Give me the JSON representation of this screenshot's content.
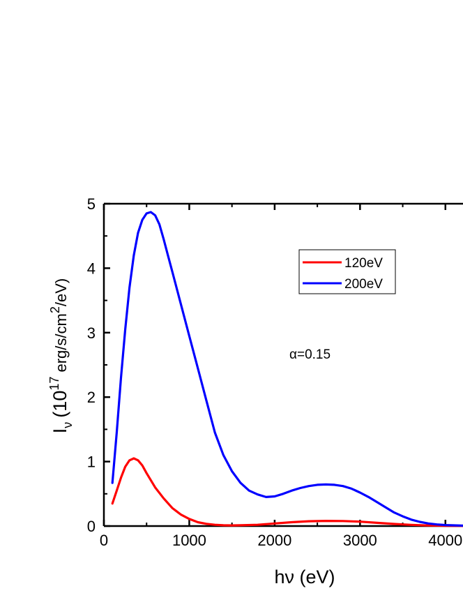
{
  "chart_data": {
    "type": "line",
    "xlabel": "hν (eV)",
    "ylabel": {
      "main": "I",
      "sub": "ν",
      "open": "(10",
      "exp": "17",
      "unit": " erg/s/cm",
      "exp2": "2",
      "close": "/eV)"
    },
    "xlim": [
      0,
      4500
    ],
    "ylim": [
      0,
      5
    ],
    "x_ticks": [
      0,
      1000,
      2000,
      3000,
      4000
    ],
    "y_ticks": [
      0,
      1,
      2,
      3,
      4,
      5
    ],
    "grid": false,
    "legend_position": "top-right",
    "annotation": "α=0.15",
    "series": [
      {
        "name": "120eV",
        "color": "#ff0000",
        "x": [
          100,
          150,
          200,
          250,
          300,
          350,
          400,
          450,
          500,
          600,
          700,
          800,
          900,
          1000,
          1100,
          1200,
          1300,
          1400,
          1500,
          1600,
          1800,
          2000,
          2200,
          2400,
          2600,
          2800,
          3000,
          3200,
          3400,
          3600,
          3800,
          4000,
          4200,
          4500
        ],
        "y": [
          0.35,
          0.55,
          0.75,
          0.92,
          1.02,
          1.05,
          1.02,
          0.94,
          0.82,
          0.6,
          0.43,
          0.28,
          0.18,
          0.11,
          0.06,
          0.035,
          0.02,
          0.012,
          0.01,
          0.012,
          0.02,
          0.04,
          0.06,
          0.075,
          0.08,
          0.078,
          0.068,
          0.05,
          0.032,
          0.018,
          0.009,
          0.004,
          0.002,
          0.001
        ]
      },
      {
        "name": "200eV",
        "color": "#0000ff",
        "x": [
          100,
          150,
          200,
          250,
          300,
          350,
          400,
          450,
          500,
          550,
          600,
          650,
          700,
          750,
          800,
          900,
          1000,
          1100,
          1200,
          1300,
          1400,
          1500,
          1600,
          1700,
          1800,
          1900,
          2000,
          2100,
          2200,
          2300,
          2400,
          2500,
          2600,
          2700,
          2800,
          2900,
          3000,
          3100,
          3200,
          3300,
          3400,
          3500,
          3600,
          3700,
          3800,
          3900,
          4000,
          4200,
          4500
        ],
        "y": [
          0.67,
          1.45,
          2.3,
          3.05,
          3.7,
          4.2,
          4.55,
          4.75,
          4.85,
          4.87,
          4.82,
          4.68,
          4.45,
          4.2,
          3.95,
          3.45,
          2.95,
          2.45,
          1.95,
          1.45,
          1.1,
          0.85,
          0.67,
          0.55,
          0.49,
          0.45,
          0.46,
          0.5,
          0.55,
          0.59,
          0.62,
          0.64,
          0.645,
          0.64,
          0.62,
          0.58,
          0.52,
          0.45,
          0.37,
          0.29,
          0.21,
          0.15,
          0.1,
          0.065,
          0.04,
          0.025,
          0.015,
          0.006,
          0.002
        ]
      }
    ]
  }
}
